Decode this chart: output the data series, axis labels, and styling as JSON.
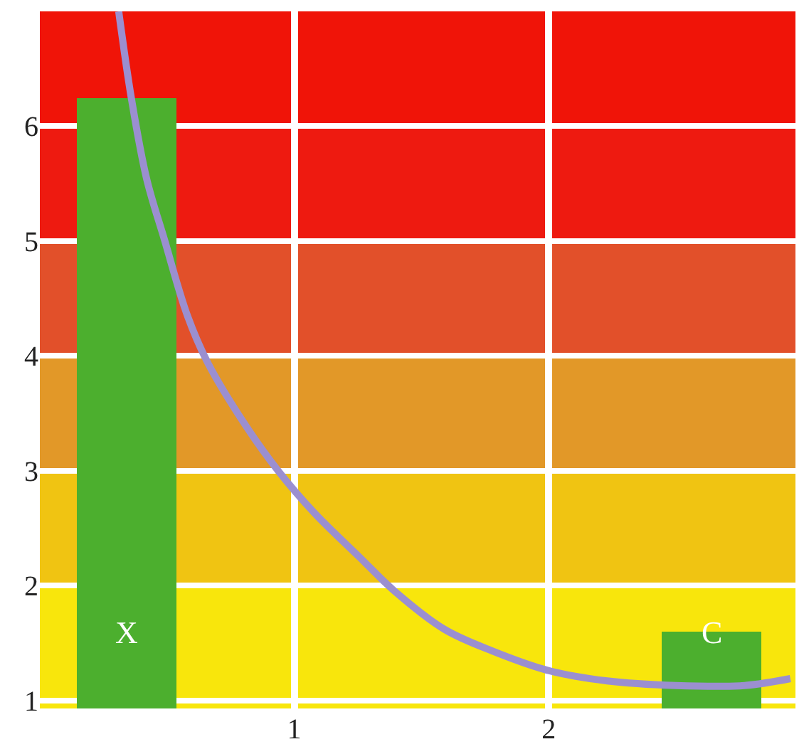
{
  "chart_data": {
    "type": "bar",
    "x": [
      0.34,
      2.64
    ],
    "series": [
      {
        "color": "#4caf2e",
        "values": [
          6.24,
          1.6
        ]
      },
      {
        "type": "line",
        "color": "#9b8fd0",
        "x": [
          0.31,
          0.36,
          0.42,
          0.49,
          0.58,
          0.66,
          0.81,
          0.94,
          1.08,
          1.26,
          1.39,
          1.59,
          1.78,
          2.0,
          2.23,
          2.5,
          2.77,
          2.95
        ],
        "values": [
          7.0,
          6.24,
          5.54,
          5.01,
          4.35,
          3.94,
          3.39,
          2.99,
          2.63,
          2.24,
          1.96,
          1.62,
          1.43,
          1.26,
          1.17,
          1.13,
          1.13,
          1.19
        ]
      }
    ],
    "annotations": [
      "X",
      "C"
    ],
    "bands": [
      {
        "axis": "y",
        "from": 6,
        "to": 7.0,
        "color": "#f01408"
      },
      {
        "axis": "y",
        "from": 5,
        "to": 6,
        "color": "#ee1a10"
      },
      {
        "axis": "y",
        "from": 4,
        "to": 5,
        "color": "#e2502a"
      },
      {
        "axis": "y",
        "from": 3,
        "to": 4,
        "color": "#e29828"
      },
      {
        "axis": "y",
        "from": 2,
        "to": 3,
        "color": "#f0c412"
      },
      {
        "axis": "y",
        "from": 0.93,
        "to": 2,
        "color": "#f8e60c"
      }
    ],
    "xlim": [
      0,
      2.97
    ],
    "xticks": [
      1,
      2
    ],
    "ylim": [
      0.93,
      7.0
    ],
    "yticks": [
      1,
      2,
      3,
      4,
      5,
      6
    ],
    "grid": true
  }
}
